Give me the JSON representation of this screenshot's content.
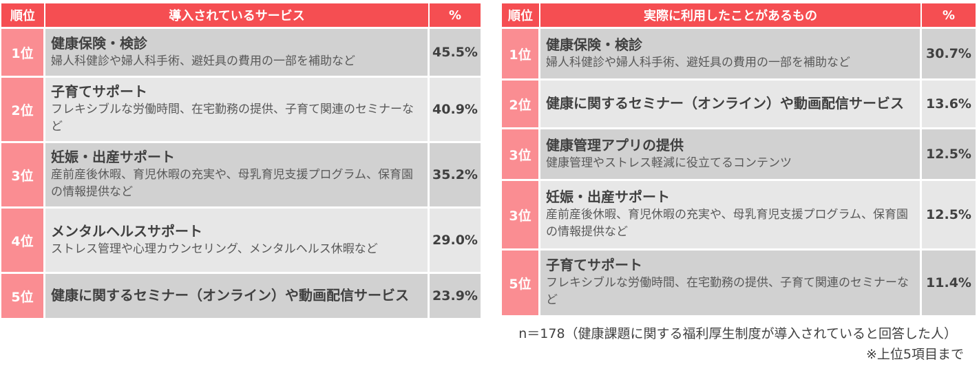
{
  "colors": {
    "header_bg": "#f54e52",
    "rank_bg": "#fa8d92",
    "row_dark": "#d1d1d1",
    "row_light": "#e7e7e7"
  },
  "left_table": {
    "headers": {
      "rank": "順位",
      "service": "導入されているサービス",
      "percent": "%"
    },
    "rows": [
      {
        "rank": "1位",
        "title": "健康保険・検診",
        "desc": "婦人科健診や婦人科手術、避妊具の費用の一部を補助など",
        "percent": "45.5%"
      },
      {
        "rank": "2位",
        "title": "子育てサポート",
        "desc": "フレキシブルな労働時間、在宅勤務の提供、子育て関連のセミナーなど",
        "percent": "40.9%"
      },
      {
        "rank": "3位",
        "title": "妊娠・出産サポート",
        "desc": "産前産後休暇、育児休暇の充実や、母乳育児支援プログラム、保育園の情報提供など",
        "percent": "35.2%"
      },
      {
        "rank": "4位",
        "title": "メンタルヘルスサポート",
        "desc": "ストレス管理や心理カウンセリング、メンタルヘルス休暇など",
        "percent": "29.0%"
      },
      {
        "rank": "5位",
        "title": "健康に関するセミナー（オンライン）や動画配信サービス",
        "desc": "",
        "percent": "23.9%"
      }
    ]
  },
  "right_table": {
    "headers": {
      "rank": "順位",
      "service": "実際に利用したことがあるもの",
      "percent": "%"
    },
    "rows": [
      {
        "rank": "1位",
        "title": "健康保険・検診",
        "desc": "婦人科健診や婦人科手術、避妊具の費用の一部を補助など",
        "percent": "30.7%"
      },
      {
        "rank": "2位",
        "title": "健康に関するセミナー（オンライン）や動画配信サービス",
        "desc": "",
        "percent": "13.6%"
      },
      {
        "rank": "3位",
        "title": "健康管理アプリの提供",
        "desc": "健康管理やストレス軽減に役立てるコンテンツ",
        "percent": "12.5%"
      },
      {
        "rank": "3位",
        "title": "妊娠・出産サポート",
        "desc": "産前産後休暇、育児休暇の充実や、母乳育児支援プログラム、保育園の情報提供など",
        "percent": "12.5%"
      },
      {
        "rank": "5位",
        "title": "子育てサポート",
        "desc": "フレキシブルな労働時間、在宅勤務の提供、子育て関連のセミナーなど",
        "percent": "11.4%"
      }
    ]
  },
  "notes": {
    "sample": "n＝178（健康課題に関する福利厚生制度が導入されていると回答した人）",
    "top": "※上位5項目まで"
  }
}
